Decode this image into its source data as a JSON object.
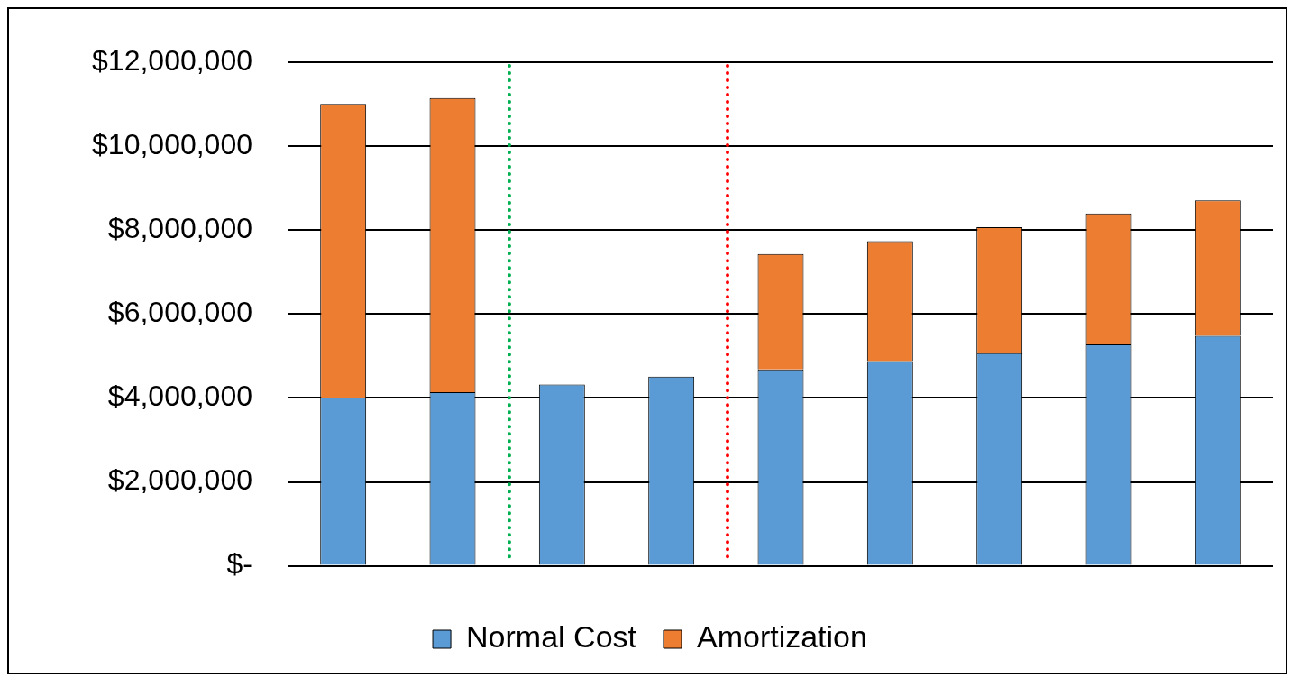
{
  "chart_data": {
    "type": "bar",
    "stacked": true,
    "categories": [
      null,
      null,
      null,
      null,
      null,
      null,
      null,
      null,
      null
    ],
    "series": [
      {
        "name": "Normal Cost",
        "color": "#5b9bd5",
        "values": [
          4010000,
          4140000,
          4320000,
          4510000,
          4680000,
          4880000,
          5070000,
          5280000,
          5480000
        ]
      },
      {
        "name": "Amortization",
        "color": "#ed7d31",
        "values": [
          7000000,
          7010000,
          null,
          null,
          2750000,
          2860000,
          3000000,
          3120000,
          3230000
        ]
      }
    ],
    "ylim": [
      0,
      12000000
    ],
    "yticks": [
      {
        "value": 0,
        "label": "$-"
      },
      {
        "value": 2000000,
        "label": "$2,000,000"
      },
      {
        "value": 4000000,
        "label": "$4,000,000"
      },
      {
        "value": 6000000,
        "label": "$6,000,000"
      },
      {
        "value": 8000000,
        "label": "$8,000,000"
      },
      {
        "value": 10000000,
        "label": "$10,000,000"
      },
      {
        "value": 12000000,
        "label": "$12,000,000"
      }
    ],
    "grid": "y",
    "legend": "bottom"
  }
}
